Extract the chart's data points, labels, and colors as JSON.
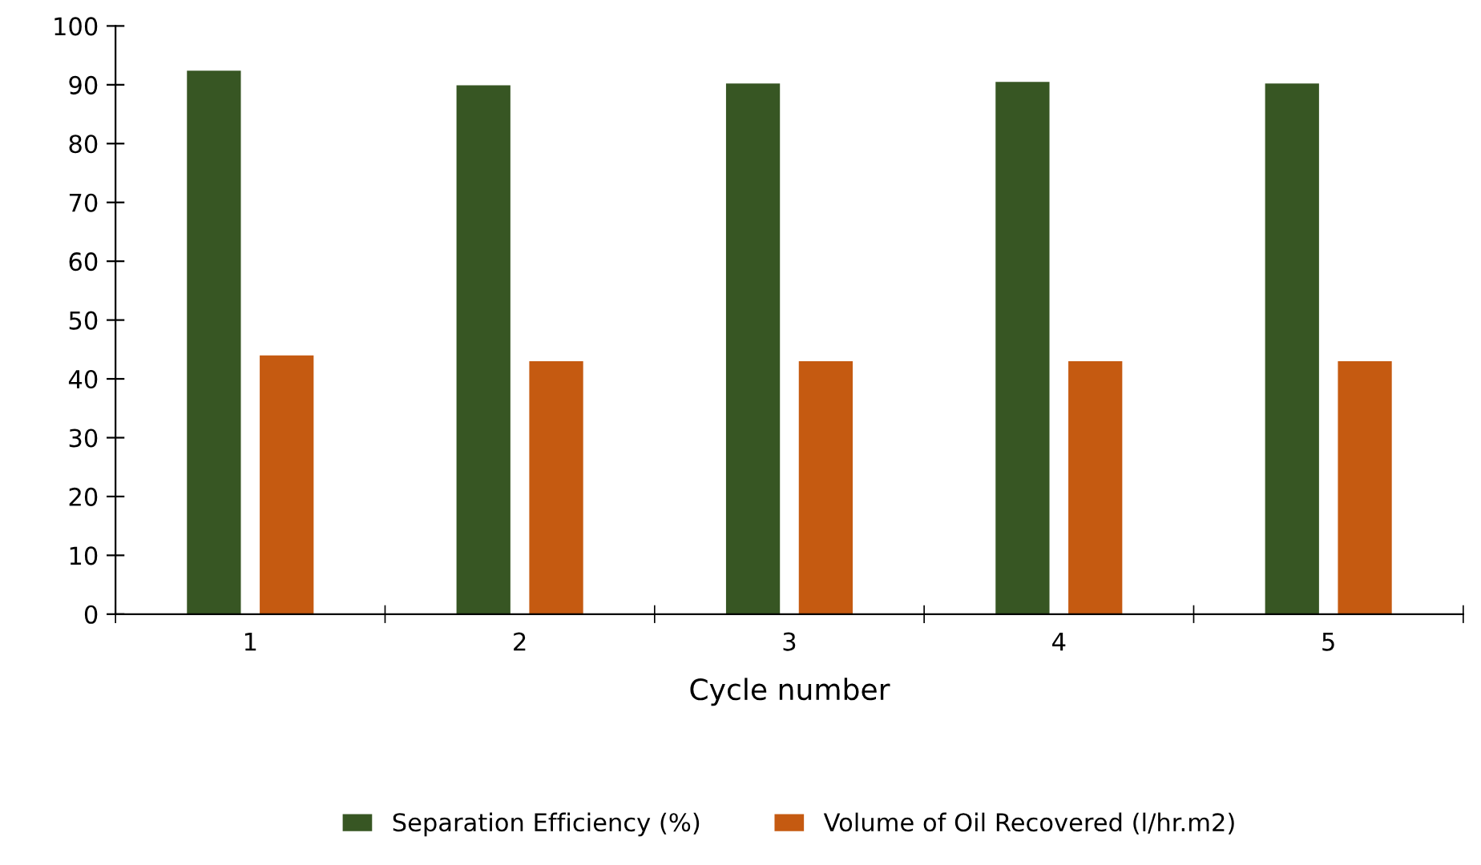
{
  "chart_data": {
    "type": "bar",
    "xlabel": "Cycle number",
    "categories": [
      "1",
      "2",
      "3",
      "4",
      "5"
    ],
    "series": [
      {
        "name": "Separation Efficiency (%)",
        "color": "#375623",
        "values": [
          92.4,
          89.9,
          90.2,
          90.5,
          90.2
        ]
      },
      {
        "name": "Volume of Oil Recovered (l/hr.m2)",
        "color": "#c55a11",
        "values": [
          44,
          43,
          43,
          43,
          43
        ]
      }
    ],
    "ylim": [
      0,
      100
    ],
    "yticks": [
      0,
      10,
      20,
      30,
      40,
      50,
      60,
      70,
      80,
      90,
      100
    ],
    "grid": false,
    "legend": "bottom"
  }
}
